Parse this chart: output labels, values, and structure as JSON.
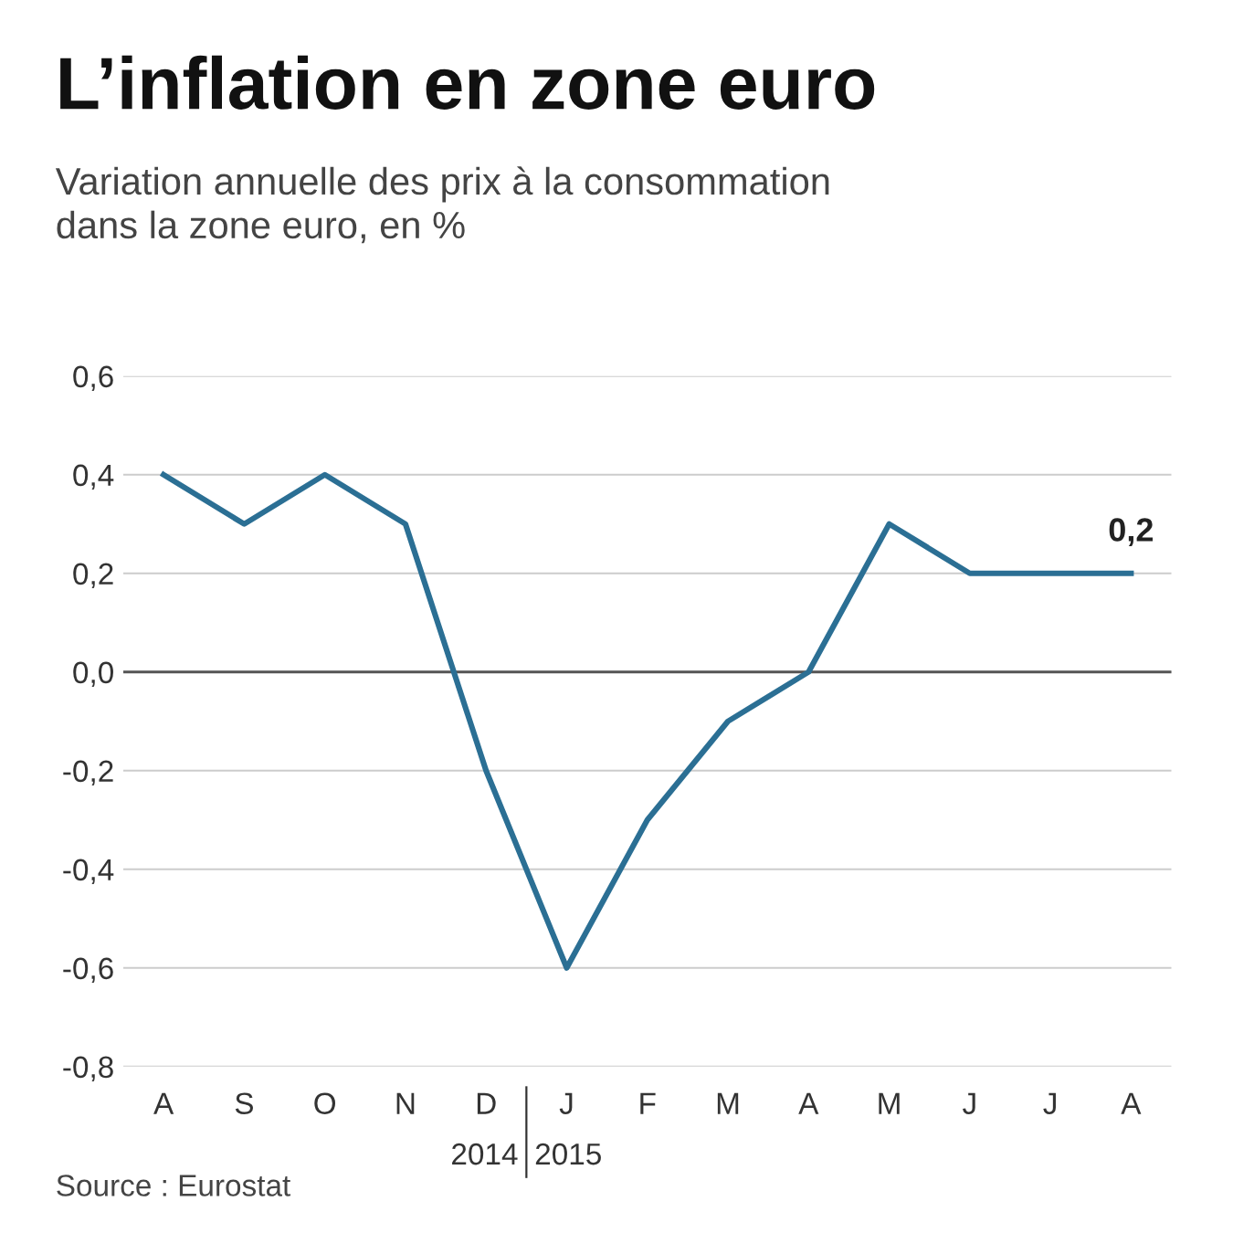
{
  "chart_data": {
    "type": "line",
    "title": "L’inflation en zone euro",
    "subtitle": "Variation annuelle des prix à la consommation\ndans la zone euro, en %",
    "categories": [
      "A",
      "S",
      "O",
      "N",
      "D",
      "J",
      "F",
      "M",
      "A",
      "M",
      "J",
      "J",
      "A"
    ],
    "series": [
      {
        "color": "#2b6f94",
        "values": [
          0.4,
          0.3,
          0.4,
          0.3,
          -0.2,
          -0.6,
          -0.3,
          -0.1,
          0.0,
          0.3,
          0.2,
          0.2,
          0.2
        ],
        "value_labels": [
          null,
          null,
          null,
          null,
          null,
          null,
          null,
          null,
          null,
          null,
          null,
          null,
          "0,2"
        ]
      }
    ],
    "ylim": [
      -0.8,
      0.6
    ],
    "yticks": [
      {
        "value": -0.8,
        "label": "-0,8"
      },
      {
        "value": -0.6,
        "label": "-0,6"
      },
      {
        "value": -0.4,
        "label": "-0,4"
      },
      {
        "value": -0.2,
        "label": "-0,2"
      },
      {
        "value": 0,
        "label": "0,0"
      },
      {
        "value": 0.2,
        "label": "0,2"
      },
      {
        "value": 0.4,
        "label": "0,4"
      },
      {
        "value": 0.6,
        "label": "0,6"
      }
    ],
    "grid": "y",
    "marker": "none",
    "line_style": "solid",
    "ref_lines": [
      {
        "axis": "y",
        "value": 0,
        "color": "#555555"
      }
    ],
    "annotations": [
      "2014",
      "2015",
      "Source : Eurostat"
    ]
  }
}
